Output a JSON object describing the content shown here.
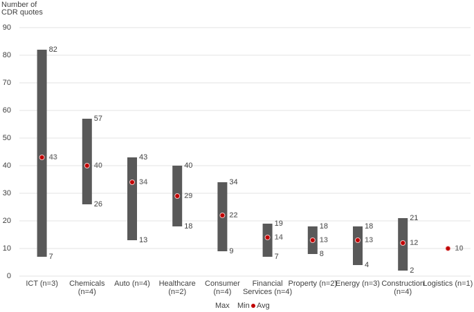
{
  "chart_data": {
    "type": "floating-bar",
    "y_label": [
      "Number of",
      "CDR quotes"
    ],
    "categories": [
      [
        "ICT (n=3)"
      ],
      [
        "Chemicals",
        "(n=4)"
      ],
      [
        "Auto (n=4)"
      ],
      [
        "Healthcare",
        "(n=2)"
      ],
      [
        "Consumer",
        "(n=4)"
      ],
      [
        "Financial",
        "Services (n=4)"
      ],
      [
        "Property (n=2)"
      ],
      [
        "Energy (n=3)"
      ],
      [
        "Construction",
        "(n=4)"
      ],
      [
        "Logistics (n=1)"
      ]
    ],
    "series": [
      {
        "name": "Max",
        "values": [
          82,
          57,
          43,
          40,
          34,
          19,
          18,
          18,
          21,
          null
        ]
      },
      {
        "name": "Min",
        "values": [
          7,
          26,
          13,
          18,
          9,
          7,
          8,
          4,
          2,
          null
        ]
      },
      {
        "name": "Avg",
        "color": "#c00000",
        "values": [
          43,
          40,
          34,
          29,
          22,
          14,
          13,
          13,
          12,
          10
        ]
      }
    ],
    "bar_color": "#595959",
    "ylim": [
      0,
      90
    ],
    "yticks": [
      0,
      10,
      20,
      30,
      40,
      50,
      60,
      70,
      80,
      90
    ],
    "grid": true
  }
}
